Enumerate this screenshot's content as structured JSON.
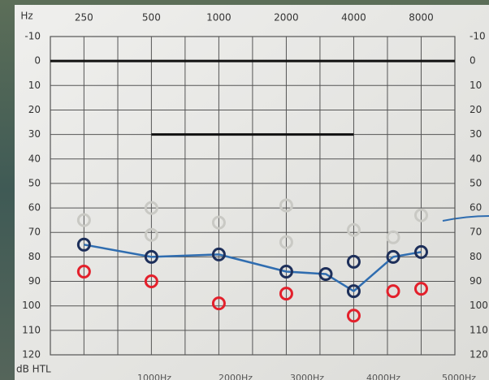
{
  "chart_data": {
    "type": "line",
    "x_label": "Hz",
    "y_label": "dB HTL",
    "footer_labels": [
      "1000Hz",
      "2000Hz",
      "3000Hz",
      "4000Hz",
      "5000Hz"
    ],
    "xscale": "log",
    "xlim": [
      177,
      11314
    ],
    "xticks": [
      250,
      500,
      1000,
      2000,
      4000,
      8000
    ],
    "xminor": [
      354,
      707,
      1414,
      2828,
      5657
    ],
    "ylim": [
      -10,
      120
    ],
    "yticks": [
      -10,
      0,
      10,
      20,
      30,
      40,
      50,
      60,
      70,
      80,
      90,
      100,
      110,
      120
    ],
    "y_inverted": true,
    "grid": true,
    "reference_lines": [
      {
        "y": 0,
        "color": "#111111"
      },
      {
        "y": 30,
        "x": [
          500,
          4000
        ],
        "color": "#111111"
      }
    ],
    "series": [
      {
        "style": "line",
        "color": "#2f6db0",
        "marker_color": "#1d2f5a",
        "x": [
          250,
          500,
          1000,
          2000,
          3000,
          4000,
          6000,
          8000
        ],
        "values": [
          75,
          80,
          79,
          86,
          87,
          94,
          80,
          78
        ]
      },
      {
        "style": "circles",
        "color": "#1d2f5a",
        "x": [
          4000
        ],
        "values": [
          82
        ]
      },
      {
        "style": "circles",
        "color": "#e3202b",
        "x": [
          250,
          500,
          1000,
          2000,
          4000,
          6000,
          8000
        ],
        "values": [
          86,
          90,
          99,
          95,
          104,
          94,
          93
        ]
      },
      {
        "style": "circles",
        "color": "#c9c9c4",
        "x": [
          250,
          500,
          500,
          1000,
          2000,
          2000,
          4000,
          6000,
          8000
        ],
        "values": [
          65,
          60,
          71,
          66,
          59,
          74,
          69,
          72,
          63
        ]
      }
    ]
  }
}
